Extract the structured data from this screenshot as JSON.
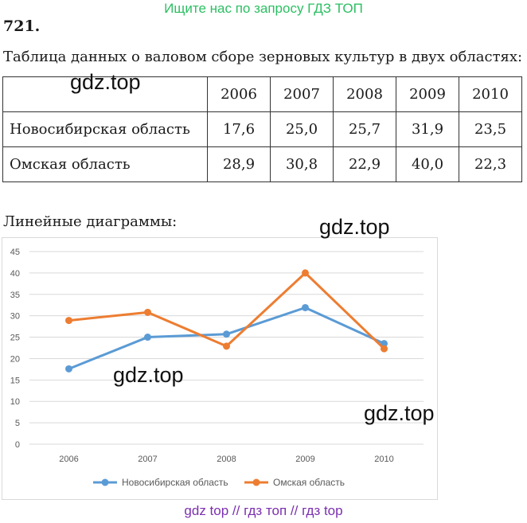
{
  "header": {
    "banner": "Ищите нас по запросу ГДЗ ТОП"
  },
  "problem": {
    "number": "721",
    "table_caption": "Таблица данных о валовом сборе зерновых культур в двух областях:",
    "chart_caption": "Линейные диаграммы:"
  },
  "table": {
    "years": [
      "2006",
      "2007",
      "2008",
      "2009",
      "2010"
    ],
    "rows": [
      {
        "label": "Новосибирская область",
        "values": [
          "17,6",
          "25,0",
          "25,7",
          "31,9",
          "23,5"
        ]
      },
      {
        "label": "Омская область",
        "values": [
          "28,9",
          "30,8",
          "22,9",
          "40,0",
          "22,3"
        ]
      }
    ]
  },
  "watermarks": [
    "gdz.top",
    "gdz.top",
    "gdz.top",
    "gdz.top"
  ],
  "footer": {
    "banner": "gdz top // гдз топ // гдз top"
  },
  "chart_data": {
    "type": "line",
    "categories": [
      "2006",
      "2007",
      "2008",
      "2009",
      "2010"
    ],
    "series": [
      {
        "name": "Новосибирская область",
        "values": [
          17.6,
          25.0,
          25.7,
          31.9,
          23.5
        ],
        "color": "#5b9bd5"
      },
      {
        "name": "Омская область",
        "values": [
          28.9,
          30.8,
          22.9,
          40.0,
          22.3
        ],
        "color": "#ed7d31"
      }
    ],
    "ylim": [
      0,
      45
    ],
    "yticks": [
      0,
      5,
      10,
      15,
      20,
      25,
      30,
      35,
      40,
      45
    ],
    "grid": true,
    "legend": "bottom"
  }
}
